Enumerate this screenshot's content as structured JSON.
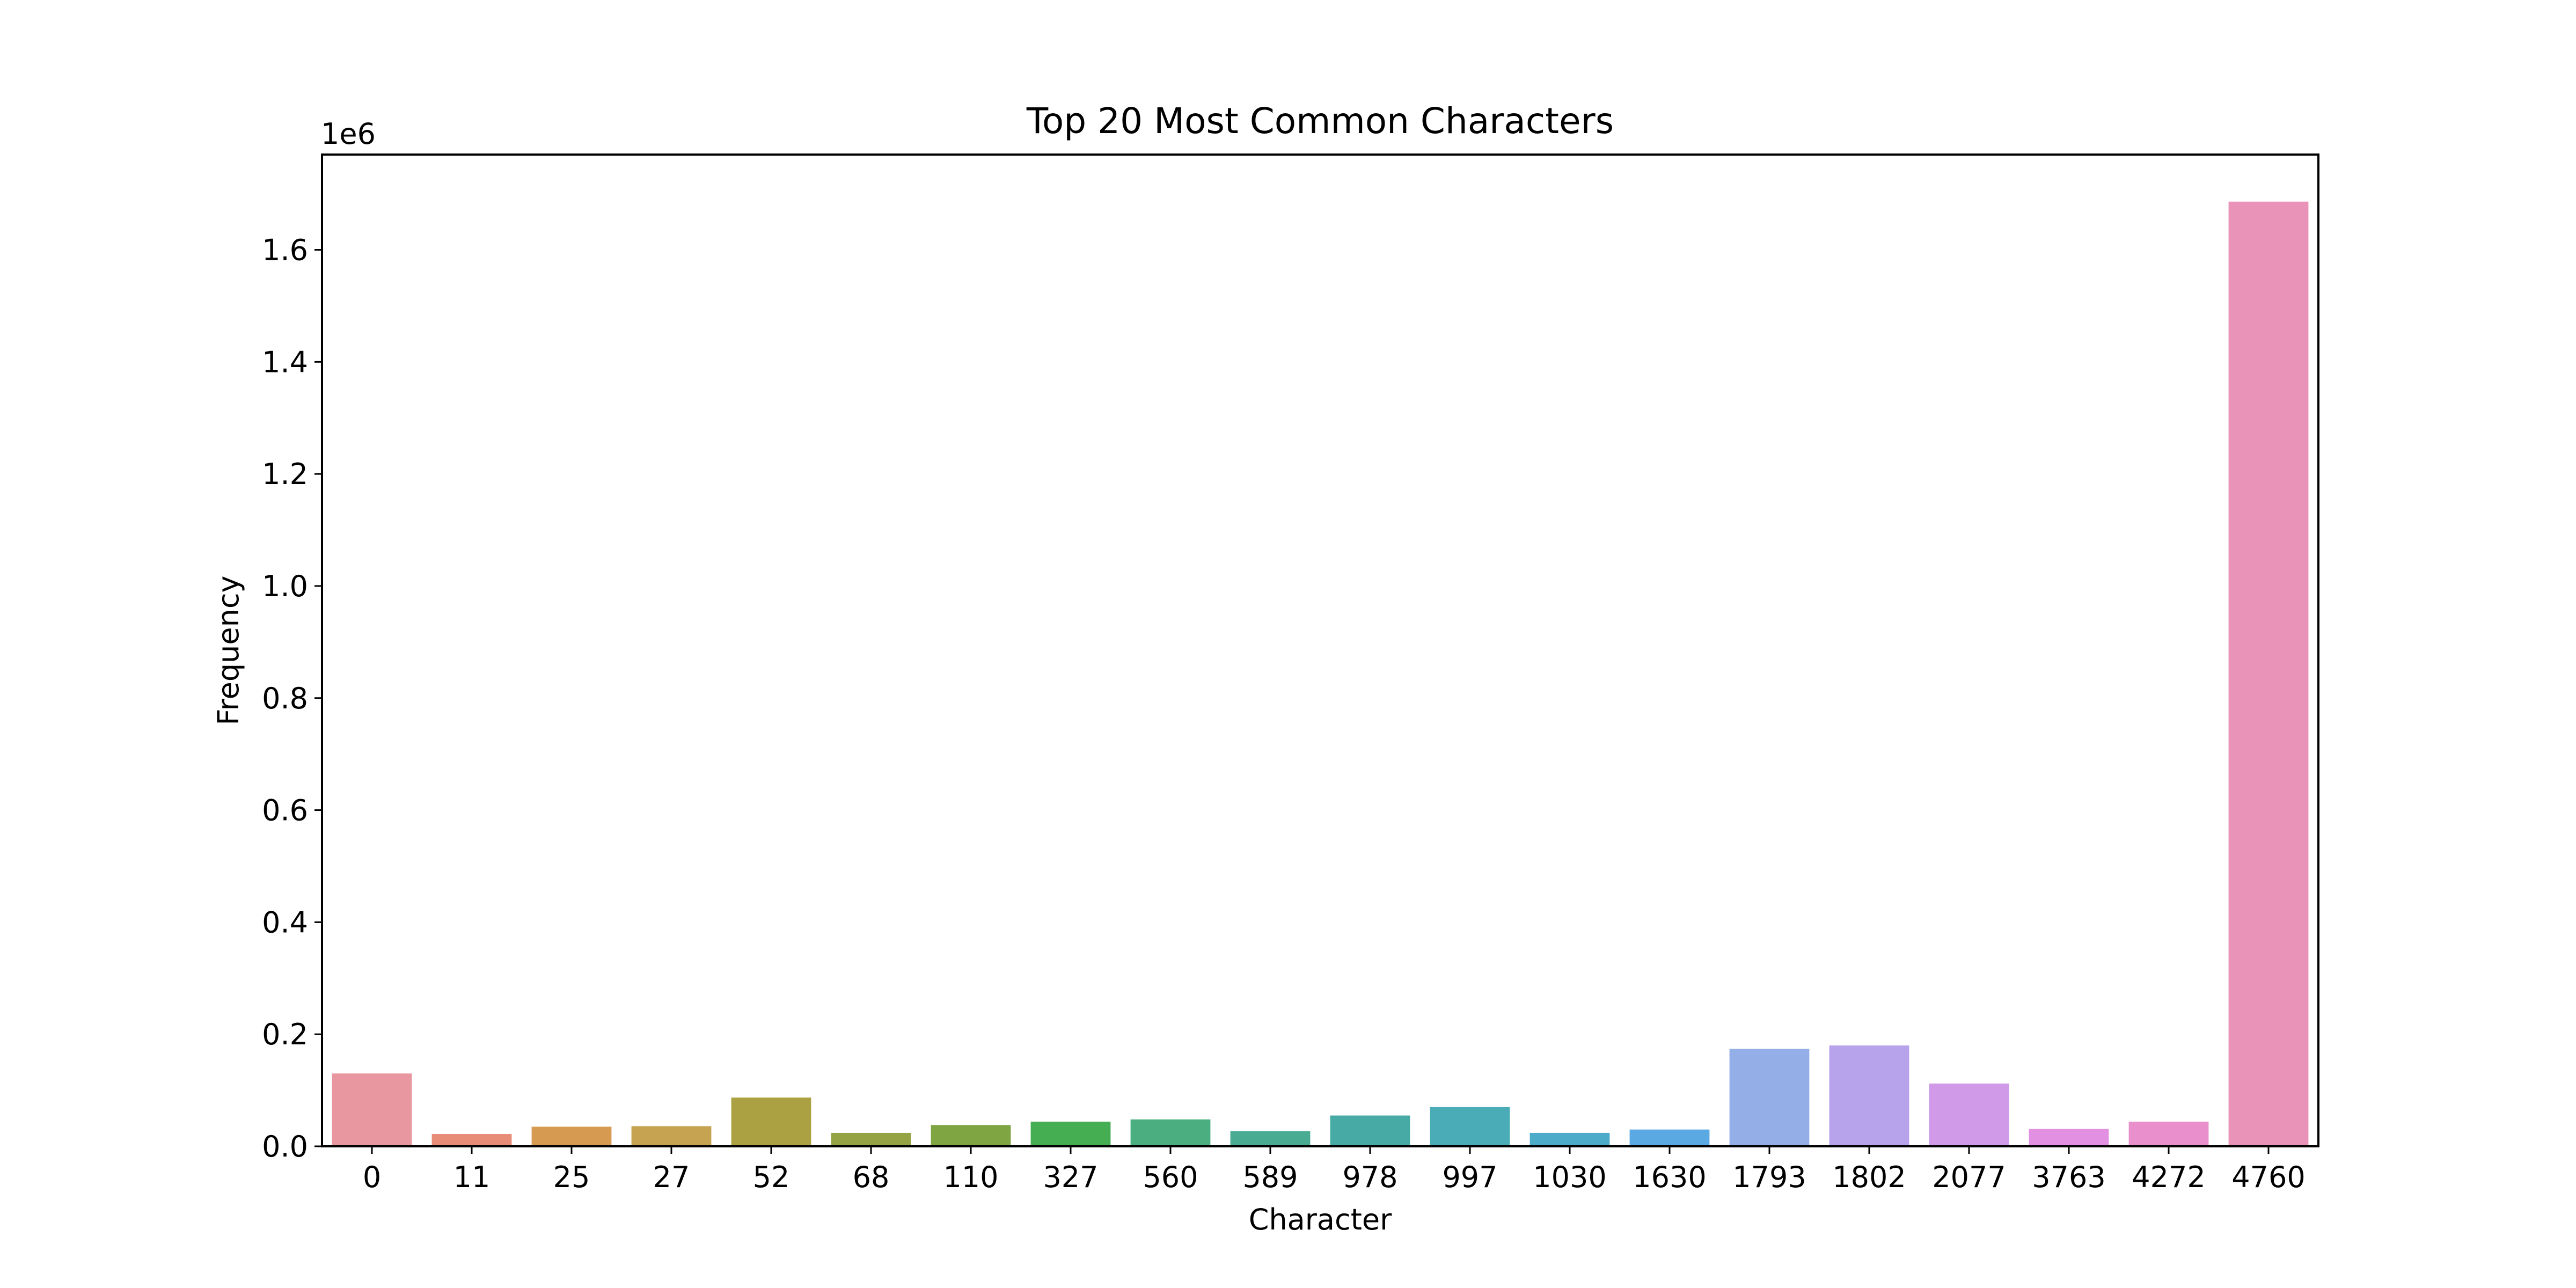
{
  "chart_data": {
    "type": "bar",
    "title": "Top 20 Most Common Characters",
    "xlabel": "Character",
    "ylabel": "Frequency",
    "y_offset_label": "1e6",
    "y_scale": 1000000,
    "ylim": [
      0,
      1770000
    ],
    "yticks": [
      0.0,
      0.2,
      0.4,
      0.6,
      0.8,
      1.0,
      1.2,
      1.4,
      1.6
    ],
    "ytick_labels": [
      "0.0",
      "0.2",
      "0.4",
      "0.6",
      "0.8",
      "1.0",
      "1.2",
      "1.4",
      "1.6"
    ],
    "grid": false,
    "categories": [
      "0",
      "11",
      "25",
      "27",
      "52",
      "68",
      "110",
      "327",
      "560",
      "589",
      "978",
      "997",
      "1030",
      "1630",
      "1793",
      "1802",
      "2077",
      "3763",
      "4272",
      "4760"
    ],
    "values": [
      130000,
      22000,
      35000,
      36000,
      87000,
      24000,
      38000,
      44000,
      48000,
      27000,
      55000,
      70000,
      24000,
      30000,
      174000,
      180000,
      112000,
      31000,
      44000,
      1686000
    ],
    "colors": [
      "#e8969f",
      "#e88b77",
      "#d69b51",
      "#c6a351",
      "#aba142",
      "#95a344",
      "#7fa542",
      "#46ae52",
      "#4aae80",
      "#4aab93",
      "#48aaa5",
      "#4aacb6",
      "#4cabc9",
      "#5aa9e2",
      "#94afe8",
      "#b6a3ec",
      "#d09ae8",
      "#e190e2",
      "#e990cc",
      "#e993b8"
    ]
  }
}
